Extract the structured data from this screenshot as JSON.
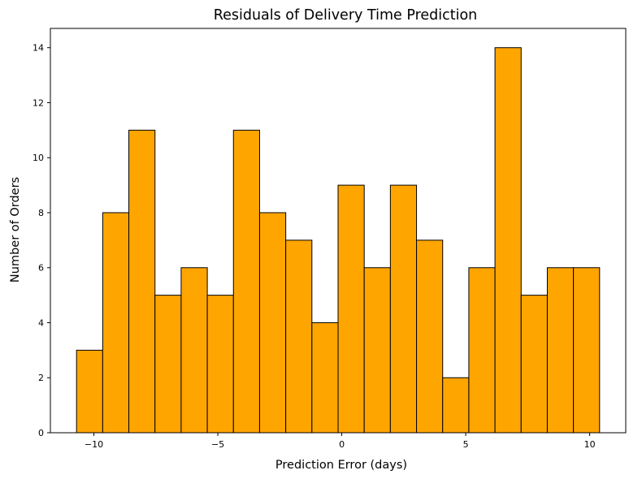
{
  "chart_data": {
    "type": "bar",
    "title": "Residuals of Delivery Time Prediction",
    "xlabel": "Prediction Error (days)",
    "ylabel": "Number of Orders",
    "bin_edges": [
      -10.7,
      -9.645,
      -8.59,
      -7.535,
      -6.48,
      -5.425,
      -4.37,
      -3.315,
      -2.26,
      -1.205,
      -0.15,
      0.905,
      1.96,
      3.015,
      4.07,
      5.125,
      6.18,
      7.235,
      8.29,
      9.345,
      10.4
    ],
    "values": [
      3,
      8,
      11,
      5,
      6,
      5,
      11,
      8,
      7,
      4,
      9,
      6,
      9,
      7,
      2,
      6,
      14,
      5,
      6,
      6
    ],
    "xlim": [
      -11.755,
      11.455
    ],
    "ylim": [
      0,
      14.7
    ],
    "xticks": [
      -10,
      -5,
      0,
      5,
      10
    ],
    "xtick_labels": [
      "−10",
      "−5",
      "0",
      "5",
      "10"
    ],
    "yticks": [
      0,
      2,
      4,
      6,
      8,
      10,
      12,
      14
    ],
    "ytick_labels": [
      "0",
      "2",
      "4",
      "6",
      "8",
      "10",
      "12",
      "14"
    ],
    "bar_color": "#FFA500",
    "edge_color": "#000000",
    "grid": false
  }
}
